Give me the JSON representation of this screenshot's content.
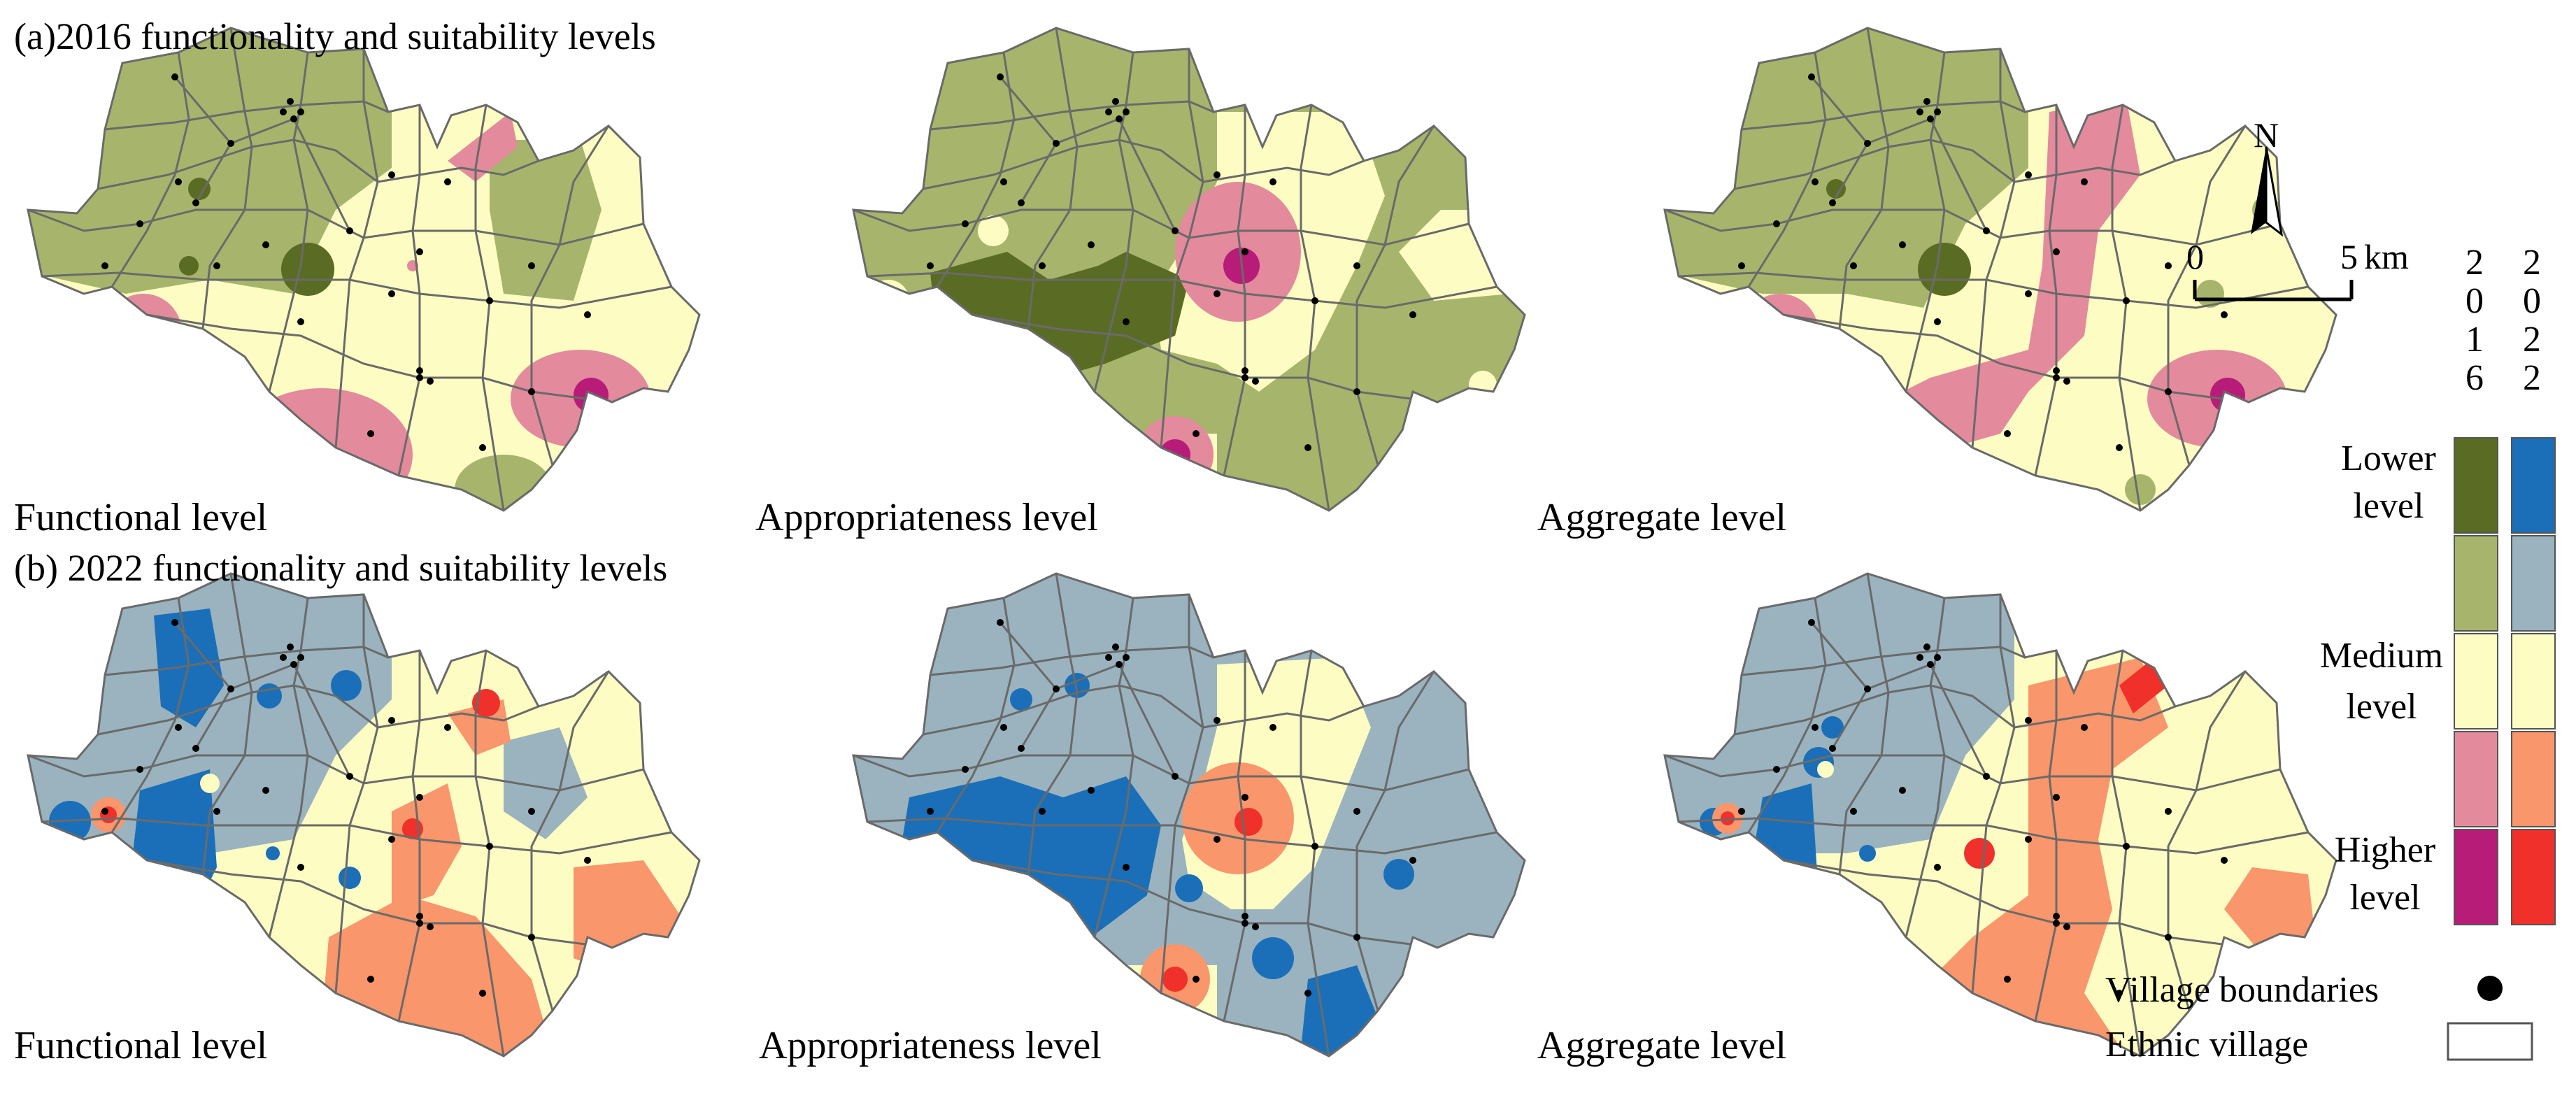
{
  "sections": [
    {
      "title": "(a)2016 functionality and suitability levels",
      "panels": [
        "Functional level",
        "Appropriateness level",
        "Aggregate level"
      ]
    },
    {
      "title": "(b) 2022 functionality and suitability levels",
      "panels": [
        "Functional level",
        "Appropriateness level",
        "Aggregate level"
      ]
    }
  ],
  "north_arrow": {
    "label": "N"
  },
  "scale_bar": {
    "start": "0",
    "end": "5",
    "unit": "km"
  },
  "legend": {
    "years": [
      [
        "2",
        "0",
        "1",
        "6"
      ],
      [
        "2",
        "0",
        "2",
        "2"
      ]
    ],
    "levels": [
      {
        "line1": "Lower",
        "line2": "level"
      },
      {
        "line1": "Medium",
        "line2": "level"
      },
      {
        "line1": "Higher",
        "line2": "level"
      }
    ],
    "colors_2016": [
      "#5a6b24",
      "#a6b56b",
      "#fdfdc3",
      "#e38a9c",
      "#b71c78"
    ],
    "colors_2022": [
      "#1a6fb8",
      "#9ab3bf",
      "#fdfdc3",
      "#f9966b",
      "#f0302a"
    ],
    "symbols": [
      {
        "label": "Village boundaries",
        "symbol": "filled-circle"
      },
      {
        "label": "Ethnic village",
        "symbol": "outline-rectangle"
      }
    ]
  }
}
